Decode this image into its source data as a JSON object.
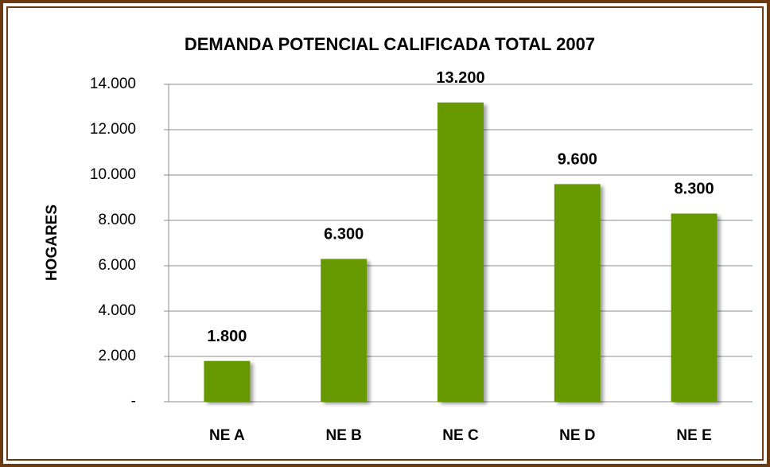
{
  "chart_data": {
    "type": "bar",
    "title": "DEMANDA POTENCIAL CALIFICADA TOTAL 2007",
    "ylabel": "HOGARES",
    "categories": [
      "NE A",
      "NE B",
      "NE C",
      "NE D",
      "NE E"
    ],
    "values": [
      1800,
      6300,
      13200,
      9600,
      8300
    ],
    "value_labels": [
      "1.800",
      "6.300",
      "13.200",
      "9.600",
      "8.300"
    ],
    "color": "#669900",
    "ylim": [
      0,
      14000
    ],
    "yticks": [
      {
        "value": 0,
        "label": "-"
      },
      {
        "value": 2000,
        "label": "2.000"
      },
      {
        "value": 4000,
        "label": "4.000"
      },
      {
        "value": 6000,
        "label": "6.000"
      },
      {
        "value": 8000,
        "label": "8.000"
      },
      {
        "value": 10000,
        "label": "10.000"
      },
      {
        "value": 12000,
        "label": "12.000"
      },
      {
        "value": 14000,
        "label": "14.000"
      }
    ],
    "grid": true
  }
}
